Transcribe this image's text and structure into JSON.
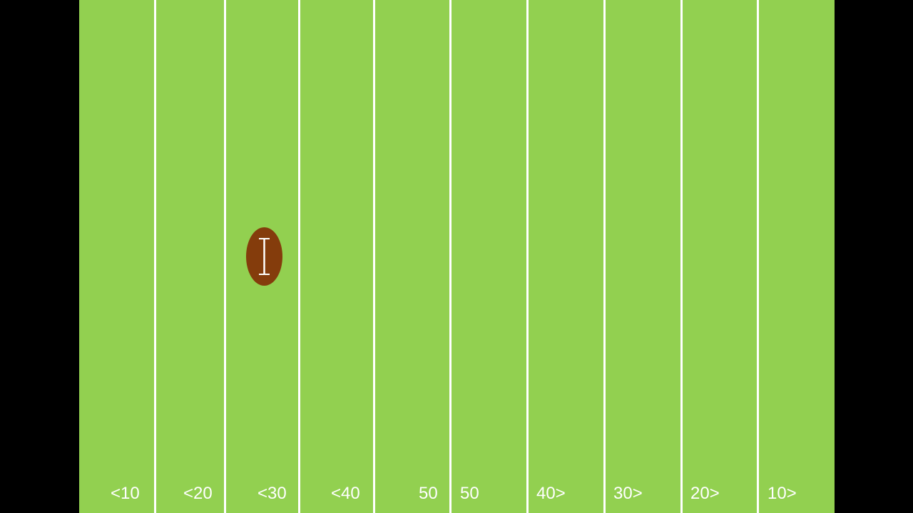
{
  "colors": {
    "background": "#000000",
    "field": "#92d050",
    "lines": "#ffffff",
    "ball": "#843c0c",
    "label_text": "#ffffff"
  },
  "yard_labels": [
    "<10",
    "<20",
    "<30",
    "<40",
    "50",
    "50",
    "40>",
    "30>",
    "20>",
    "10>"
  ],
  "ball": {
    "icon": "football-icon",
    "zone": "<30"
  }
}
